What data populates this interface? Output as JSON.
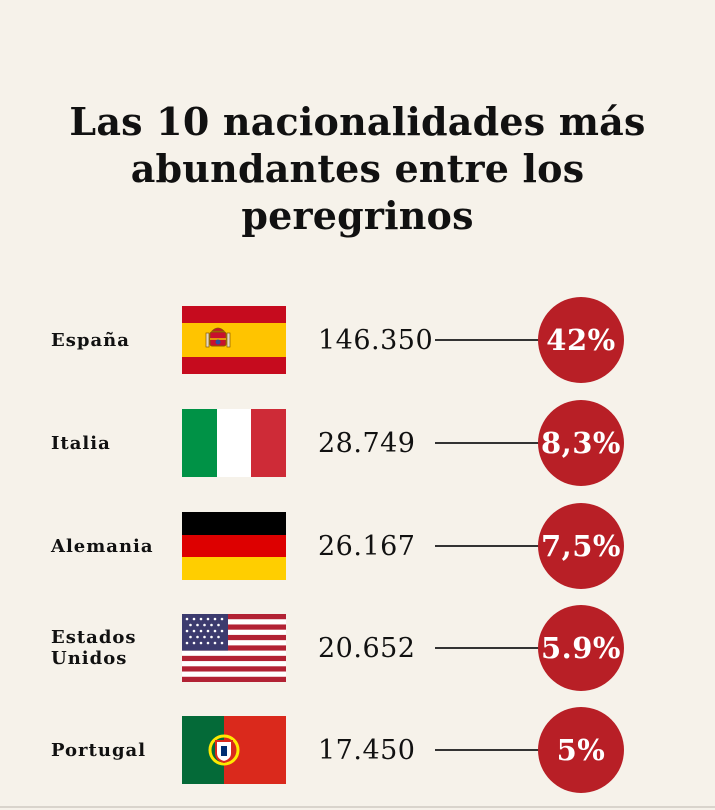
{
  "title": "Las 10 nacionalidades más abundantes entre los peregrinos",
  "chart_data": {
    "type": "table",
    "title": "Las 10 nacionalidades más abundantes entre los peregrinos",
    "columns": [
      "country",
      "flag",
      "pilgrims",
      "share"
    ],
    "rows": [
      {
        "country": "España",
        "flag": "spain-flag-icon",
        "pilgrims": "146.350",
        "share": "42%"
      },
      {
        "country": "Italia",
        "flag": "italy-flag-icon",
        "pilgrims": "28.749",
        "share": "8,3%"
      },
      {
        "country": "Alemania",
        "flag": "germany-flag-icon",
        "pilgrims": "26.167",
        "share": "7,5%"
      },
      {
        "country": "Estados Unidos",
        "flag": "usa-flag-icon",
        "pilgrims": "20.652",
        "share": "5.9%"
      },
      {
        "country": "Portugal",
        "flag": "portugal-flag-icon",
        "pilgrims": "17.450",
        "share": "5%"
      }
    ],
    "values": [
      146350,
      28749,
      26167,
      20652,
      17450
    ],
    "percentages": [
      42,
      8.3,
      7.5,
      5.9,
      5
    ]
  },
  "colors": {
    "background": "#f6f2ea",
    "accent": "#b81f26",
    "text": "#111111"
  }
}
